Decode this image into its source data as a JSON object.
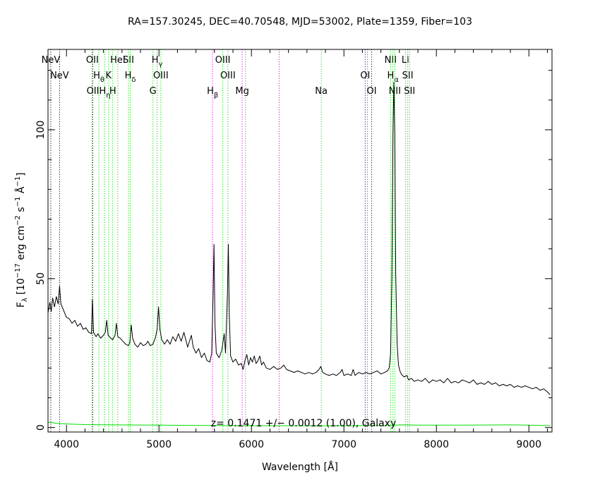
{
  "chart_data": {
    "type": "line",
    "title": "RA=157.30245, DEC=40.70548, MJD=53002, Plate=1359, Fiber=103",
    "xlabel": "Wavelength [Å]",
    "ylabel": {
      "parts": [
        {
          "t": "F",
          "s": "n"
        },
        {
          "t": "λ",
          "s": "sub"
        },
        {
          "t": " [10",
          "s": "n"
        },
        {
          "t": "−17",
          "s": "sup"
        },
        {
          "t": " erg cm",
          "s": "n"
        },
        {
          "t": "−2",
          "s": "sup"
        },
        {
          "t": " s",
          "s": "n"
        },
        {
          "t": "−1",
          "s": "sup"
        },
        {
          "t": " Å",
          "s": "n"
        },
        {
          "t": "−1",
          "s": "sup"
        },
        {
          "t": "]",
          "s": "n"
        }
      ]
    },
    "annotation": "z= 0.1471 +/− 0.0012 (1.00), Galaxy",
    "xlim": [
      3800,
      9250
    ],
    "ylim": [
      -1.5,
      127
    ],
    "x_ticks": [
      4000,
      5000,
      6000,
      7000,
      8000,
      9000
    ],
    "y_ticks": [
      0,
      50,
      100
    ],
    "series": [
      {
        "color": "#000000",
        "points": [
          [
            3800,
            38.5
          ],
          [
            3820,
            42
          ],
          [
            3835,
            39
          ],
          [
            3850,
            43.5
          ],
          [
            3870,
            40.5
          ],
          [
            3890,
            44
          ],
          [
            3910,
            41.5
          ],
          [
            3925,
            47.5
          ],
          [
            3940,
            41.5
          ],
          [
            3960,
            40
          ],
          [
            3980,
            38.5
          ],
          [
            4000,
            37
          ],
          [
            4030,
            36.5
          ],
          [
            4060,
            35
          ],
          [
            4090,
            36
          ],
          [
            4120,
            34
          ],
          [
            4150,
            35
          ],
          [
            4180,
            33
          ],
          [
            4210,
            33.5
          ],
          [
            4240,
            32
          ],
          [
            4270,
            31.5
          ],
          [
            4280,
            43
          ],
          [
            4292,
            32
          ],
          [
            4320,
            30.5
          ],
          [
            4340,
            31.5
          ],
          [
            4370,
            30
          ],
          [
            4400,
            31
          ],
          [
            4420,
            32
          ],
          [
            4435,
            36
          ],
          [
            4450,
            31
          ],
          [
            4480,
            30
          ],
          [
            4500,
            29.5
          ],
          [
            4525,
            31
          ],
          [
            4540,
            35
          ],
          [
            4555,
            30.5
          ],
          [
            4580,
            30
          ],
          [
            4610,
            29
          ],
          [
            4640,
            28
          ],
          [
            4670,
            27.5
          ],
          [
            4685,
            28.5
          ],
          [
            4700,
            34.5
          ],
          [
            4715,
            30
          ],
          [
            4740,
            28
          ],
          [
            4770,
            27
          ],
          [
            4800,
            28.5
          ],
          [
            4830,
            27.5
          ],
          [
            4860,
            28
          ],
          [
            4880,
            29
          ],
          [
            4905,
            27.5
          ],
          [
            4935,
            28
          ],
          [
            4960,
            30
          ],
          [
            4980,
            33
          ],
          [
            4995,
            40.5
          ],
          [
            5010,
            33
          ],
          [
            5030,
            29.5
          ],
          [
            5060,
            28
          ],
          [
            5090,
            29.5
          ],
          [
            5120,
            28
          ],
          [
            5150,
            30.5
          ],
          [
            5180,
            29
          ],
          [
            5210,
            31.5
          ],
          [
            5240,
            29
          ],
          [
            5270,
            32
          ],
          [
            5290,
            29.5
          ],
          [
            5310,
            27
          ],
          [
            5330,
            29
          ],
          [
            5350,
            31
          ],
          [
            5370,
            27
          ],
          [
            5400,
            25
          ],
          [
            5430,
            26.5
          ],
          [
            5460,
            23.5
          ],
          [
            5490,
            25
          ],
          [
            5520,
            22.5
          ],
          [
            5550,
            22
          ],
          [
            5570,
            25
          ],
          [
            5585,
            45
          ],
          [
            5595,
            61.5
          ],
          [
            5605,
            35
          ],
          [
            5620,
            25
          ],
          [
            5650,
            23.5
          ],
          [
            5680,
            26
          ],
          [
            5705,
            31.5
          ],
          [
            5720,
            25
          ],
          [
            5740,
            45
          ],
          [
            5750,
            61.5
          ],
          [
            5760,
            38
          ],
          [
            5775,
            24
          ],
          [
            5800,
            22
          ],
          [
            5830,
            23
          ],
          [
            5860,
            21
          ],
          [
            5890,
            21.5
          ],
          [
            5910,
            19.5
          ],
          [
            5930,
            22.5
          ],
          [
            5950,
            24.5
          ],
          [
            5970,
            21
          ],
          [
            5990,
            23.5
          ],
          [
            6010,
            22
          ],
          [
            6030,
            24
          ],
          [
            6050,
            21.5
          ],
          [
            6070,
            22.5
          ],
          [
            6090,
            24
          ],
          [
            6110,
            21
          ],
          [
            6130,
            22
          ],
          [
            6160,
            20
          ],
          [
            6200,
            19.5
          ],
          [
            6240,
            20.5
          ],
          [
            6280,
            19.5
          ],
          [
            6320,
            20
          ],
          [
            6350,
            21
          ],
          [
            6380,
            19.5
          ],
          [
            6420,
            19
          ],
          [
            6460,
            18.5
          ],
          [
            6500,
            19
          ],
          [
            6540,
            18.5
          ],
          [
            6580,
            18
          ],
          [
            6620,
            18.5
          ],
          [
            6660,
            18
          ],
          [
            6700,
            18.5
          ],
          [
            6730,
            19.5
          ],
          [
            6750,
            20.5
          ],
          [
            6770,
            18.5
          ],
          [
            6800,
            18
          ],
          [
            6840,
            17.5
          ],
          [
            6880,
            18
          ],
          [
            6920,
            17.5
          ],
          [
            6960,
            18.5
          ],
          [
            6980,
            19.5
          ],
          [
            7000,
            17.5
          ],
          [
            7040,
            18
          ],
          [
            7080,
            17.5
          ],
          [
            7100,
            19.5
          ],
          [
            7120,
            17.5
          ],
          [
            7160,
            18.5
          ],
          [
            7200,
            18
          ],
          [
            7240,
            18.5
          ],
          [
            7280,
            18
          ],
          [
            7320,
            18.5
          ],
          [
            7360,
            19
          ],
          [
            7400,
            18
          ],
          [
            7440,
            18.5
          ],
          [
            7470,
            19
          ],
          [
            7490,
            20
          ],
          [
            7505,
            25
          ],
          [
            7518,
            50
          ],
          [
            7530,
            98
          ],
          [
            7540,
            116
          ],
          [
            7550,
            98
          ],
          [
            7560,
            52
          ],
          [
            7575,
            28
          ],
          [
            7590,
            21
          ],
          [
            7605,
            19
          ],
          [
            7620,
            18
          ],
          [
            7650,
            17
          ],
          [
            7680,
            17.5
          ],
          [
            7700,
            16
          ],
          [
            7730,
            16.5
          ],
          [
            7760,
            15.5
          ],
          [
            7800,
            16
          ],
          [
            7840,
            15.5
          ],
          [
            7880,
            16.5
          ],
          [
            7920,
            15
          ],
          [
            7960,
            16
          ],
          [
            8000,
            15.5
          ],
          [
            8040,
            16
          ],
          [
            8080,
            15
          ],
          [
            8120,
            16.5
          ],
          [
            8160,
            15
          ],
          [
            8200,
            15.5
          ],
          [
            8240,
            15
          ],
          [
            8280,
            16
          ],
          [
            8320,
            15.5
          ],
          [
            8360,
            15
          ],
          [
            8400,
            16
          ],
          [
            8440,
            14.5
          ],
          [
            8480,
            15
          ],
          [
            8520,
            14.5
          ],
          [
            8560,
            15.5
          ],
          [
            8600,
            14.5
          ],
          [
            8640,
            15
          ],
          [
            8680,
            14
          ],
          [
            8720,
            14.5
          ],
          [
            8760,
            14
          ],
          [
            8800,
            14.5
          ],
          [
            8840,
            13.5
          ],
          [
            8880,
            14
          ],
          [
            8920,
            13.5
          ],
          [
            8960,
            14
          ],
          [
            9000,
            13.5
          ],
          [
            9040,
            13
          ],
          [
            9080,
            13.5
          ],
          [
            9120,
            12.5
          ],
          [
            9160,
            13
          ],
          [
            9200,
            12
          ],
          [
            9230,
            11
          ]
        ]
      },
      {
        "color": "#00dd00",
        "points": [
          [
            3800,
            1.8
          ],
          [
            3900,
            1.4
          ],
          [
            4000,
            1.2
          ],
          [
            4200,
            1.0
          ],
          [
            4500,
            0.9
          ],
          [
            5000,
            0.8
          ],
          [
            5500,
            0.7
          ],
          [
            6000,
            0.6
          ],
          [
            6500,
            0.6
          ],
          [
            7000,
            0.6
          ],
          [
            7500,
            0.7
          ],
          [
            7600,
            0.9
          ],
          [
            7800,
            0.8
          ],
          [
            8300,
            0.8
          ],
          [
            8800,
            0.9
          ],
          [
            9000,
            0.8
          ],
          [
            9230,
            0.6
          ]
        ]
      }
    ],
    "lines": [
      {
        "x": 3830,
        "color": "#000000",
        "label": "NeV",
        "row": 1
      },
      {
        "x": 3925,
        "color": "#000000",
        "label": "NeV",
        "row": 2
      },
      {
        "x": 4280,
        "color": "#000000",
        "label": "OII",
        "row": 1
      },
      {
        "x": 4285,
        "color": "#008800",
        "label": "OII",
        "row": 3
      },
      {
        "x": 4350,
        "color": "#00dd00",
        "label": "Hθ",
        "row": 2
      },
      {
        "x": 4415,
        "color": "#00dd00",
        "label": "Hη",
        "row": 3
      },
      {
        "x": 4455,
        "color": "#00dd00",
        "label": "K",
        "row": 2
      },
      {
        "x": 4500,
        "color": "#00dd00",
        "label": "H",
        "row": 3
      },
      {
        "x": 4555,
        "color": "#00dd00",
        "label": "HeI",
        "row": 1
      },
      {
        "x": 4670,
        "color": "#00dd00",
        "label": "SII",
        "row": 1
      },
      {
        "x": 4690,
        "color": "#00dd00",
        "label": "Hδ",
        "row": 2
      },
      {
        "x": 4935,
        "color": "#00dd00",
        "label": "G",
        "row": 3
      },
      {
        "x": 4980,
        "color": "#00dd00",
        "label": "Hγ",
        "row": 1
      },
      {
        "x": 5020,
        "color": "#00dd00",
        "label": "OIII",
        "row": 2
      },
      {
        "x": 5580,
        "color": "#dd00dd",
        "label": "Hβ",
        "row": 3
      },
      {
        "x": 5690,
        "color": "#00dd00",
        "label": "OIII",
        "row": 1
      },
      {
        "x": 5745,
        "color": "#00dd00",
        "label": "OIII",
        "row": 2
      },
      {
        "x": 5900,
        "color": "#dd00dd",
        "label": "Mg",
        "row": 3
      },
      {
        "x": 5935,
        "color": "#00dd00",
        "label": "",
        "row": 0
      },
      {
        "x": 6300,
        "color": "#dd00dd",
        "label": "",
        "row": 0
      },
      {
        "x": 6755,
        "color": "#00dd00",
        "label": "Na",
        "row": 3
      },
      {
        "x": 7230,
        "color": "#0000cc",
        "label": "OI",
        "row": 2
      },
      {
        "x": 7255,
        "color": "#dd00dd",
        "label": "",
        "row": 0
      },
      {
        "x": 7300,
        "color": "#0000cc",
        "label": "OI",
        "row": 3
      },
      {
        "x": 7505,
        "color": "#00dd00",
        "label": "NII",
        "row": 1
      },
      {
        "x": 7530,
        "color": "#00dd00",
        "label": "Hα",
        "row": 2
      },
      {
        "x": 7550,
        "color": "#00dd00",
        "label": "NII",
        "row": 3
      },
      {
        "x": 7665,
        "color": "#00dd00",
        "label": "Li",
        "row": 1
      },
      {
        "x": 7690,
        "color": "#00dd00",
        "label": "SII",
        "row": 2
      },
      {
        "x": 7710,
        "color": "#00dd00",
        "label": "SII",
        "row": 3
      }
    ]
  }
}
